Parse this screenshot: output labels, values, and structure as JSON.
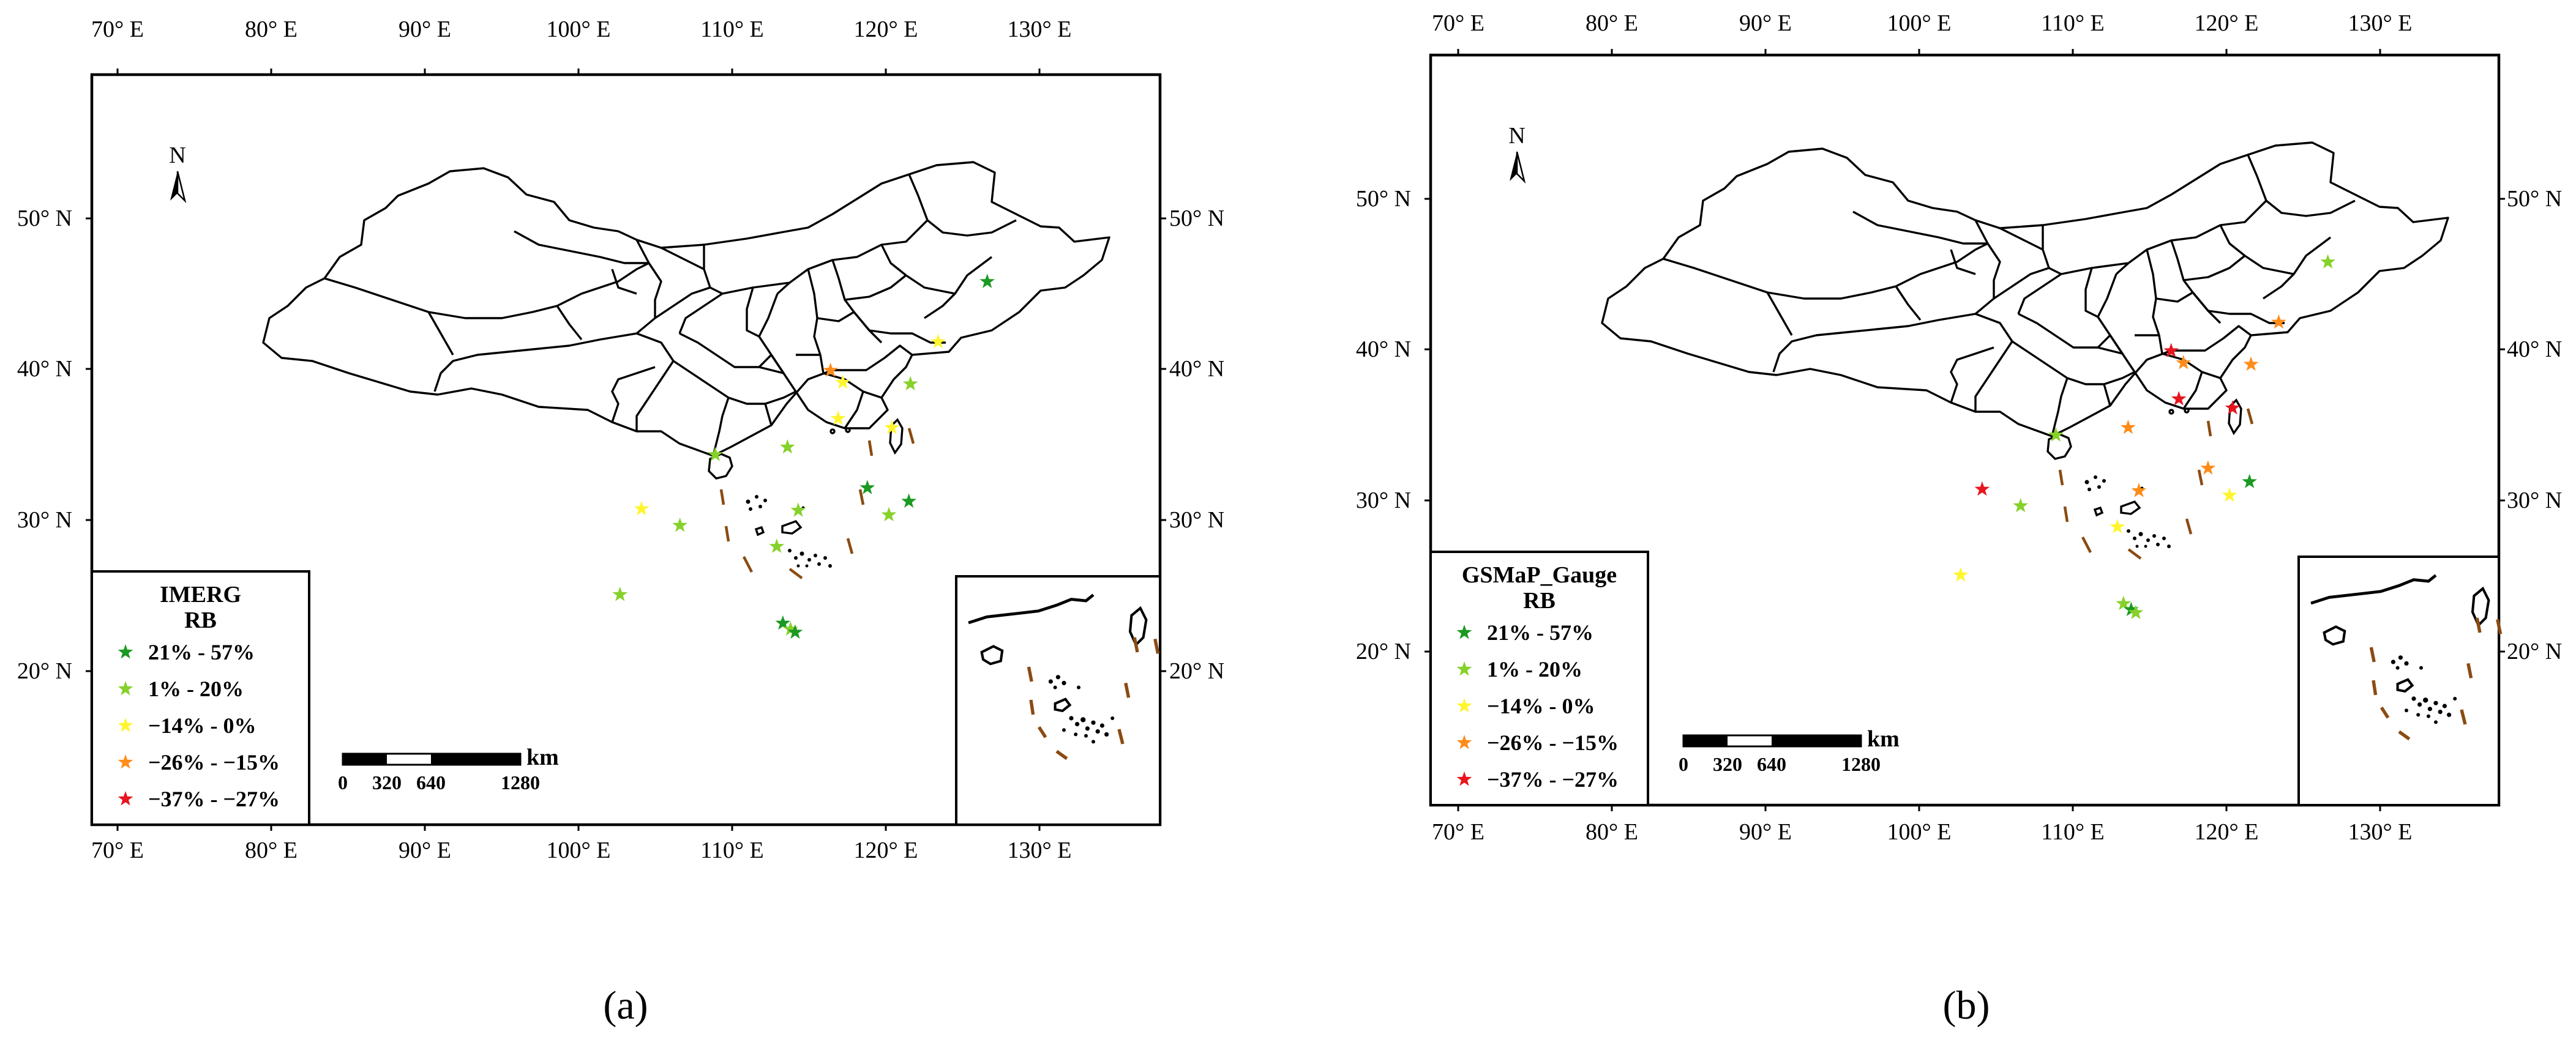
{
  "figure": {
    "lon_ticks": [
      "70° E",
      "80° E",
      "90° E",
      "100° E",
      "110° E",
      "120° E",
      "130° E"
    ],
    "lat_ticks": [
      "50° N",
      "40° N",
      "30° N",
      "20° N"
    ],
    "north_label": "N",
    "scale": {
      "unit": "km",
      "labels": [
        "0",
        "320",
        "640",
        "1280"
      ]
    },
    "legend_labels": [
      "21% - 57%",
      "1% - 20%",
      "−14% - 0%",
      "−26% - −15%",
      "−37% - −27%"
    ],
    "legend_colors": [
      "#1a9a22",
      "#86d12a",
      "#fff52e",
      "#ff8c1a",
      "#e8151e"
    ]
  },
  "panels": [
    {
      "caption": "(a)",
      "legend_title": "IMERG",
      "legend_subtitle": "RB",
      "stations": [
        {
          "lon": 126.6,
          "lat": 45.8,
          "cls": 0
        },
        {
          "lon": 123.4,
          "lat": 41.8,
          "cls": 2
        },
        {
          "lon": 121.6,
          "lat": 39.0,
          "cls": 1
        },
        {
          "lon": 116.4,
          "lat": 39.9,
          "cls": 3
        },
        {
          "lon": 117.2,
          "lat": 39.1,
          "cls": 2
        },
        {
          "lon": 116.9,
          "lat": 36.7,
          "cls": 2
        },
        {
          "lon": 120.4,
          "lat": 36.1,
          "cls": 2
        },
        {
          "lon": 113.6,
          "lat": 34.8,
          "cls": 1
        },
        {
          "lon": 108.9,
          "lat": 34.3,
          "cls": 1
        },
        {
          "lon": 118.8,
          "lat": 32.1,
          "cls": 0
        },
        {
          "lon": 121.5,
          "lat": 31.2,
          "cls": 0
        },
        {
          "lon": 120.2,
          "lat": 30.3,
          "cls": 1
        },
        {
          "lon": 114.3,
          "lat": 30.6,
          "cls": 1
        },
        {
          "lon": 104.1,
          "lat": 30.7,
          "cls": 2
        },
        {
          "lon": 106.6,
          "lat": 29.6,
          "cls": 1
        },
        {
          "lon": 112.9,
          "lat": 28.2,
          "cls": 1
        },
        {
          "lon": 102.7,
          "lat": 25.0,
          "cls": 1
        },
        {
          "lon": 113.3,
          "lat": 23.1,
          "cls": 0
        },
        {
          "lon": 113.8,
          "lat": 22.7,
          "cls": 1
        },
        {
          "lon": 114.1,
          "lat": 22.5,
          "cls": 0
        }
      ]
    },
    {
      "caption": "(b)",
      "legend_title": "GSMaP_Gauge",
      "legend_subtitle": "RB",
      "stations": [
        {
          "lon": 126.6,
          "lat": 45.8,
          "cls": 1
        },
        {
          "lon": 123.4,
          "lat": 41.8,
          "cls": 3
        },
        {
          "lon": 121.6,
          "lat": 39.0,
          "cls": 3
        },
        {
          "lon": 116.4,
          "lat": 39.9,
          "cls": 4
        },
        {
          "lon": 117.2,
          "lat": 39.1,
          "cls": 3
        },
        {
          "lon": 116.9,
          "lat": 36.7,
          "cls": 4
        },
        {
          "lon": 120.4,
          "lat": 36.1,
          "cls": 4
        },
        {
          "lon": 113.6,
          "lat": 34.8,
          "cls": 3
        },
        {
          "lon": 108.9,
          "lat": 34.3,
          "cls": 1
        },
        {
          "lon": 118.8,
          "lat": 32.1,
          "cls": 3
        },
        {
          "lon": 121.5,
          "lat": 31.2,
          "cls": 0
        },
        {
          "lon": 120.2,
          "lat": 30.3,
          "cls": 2
        },
        {
          "lon": 114.3,
          "lat": 30.6,
          "cls": 3
        },
        {
          "lon": 104.1,
          "lat": 30.7,
          "cls": 4
        },
        {
          "lon": 106.6,
          "lat": 29.6,
          "cls": 1
        },
        {
          "lon": 112.9,
          "lat": 28.2,
          "cls": 2
        },
        {
          "lon": 102.7,
          "lat": 25.0,
          "cls": 2
        },
        {
          "lon": 113.3,
          "lat": 23.1,
          "cls": 1
        },
        {
          "lon": 113.8,
          "lat": 22.7,
          "cls": 0
        },
        {
          "lon": 114.1,
          "lat": 22.5,
          "cls": 1
        }
      ]
    }
  ]
}
